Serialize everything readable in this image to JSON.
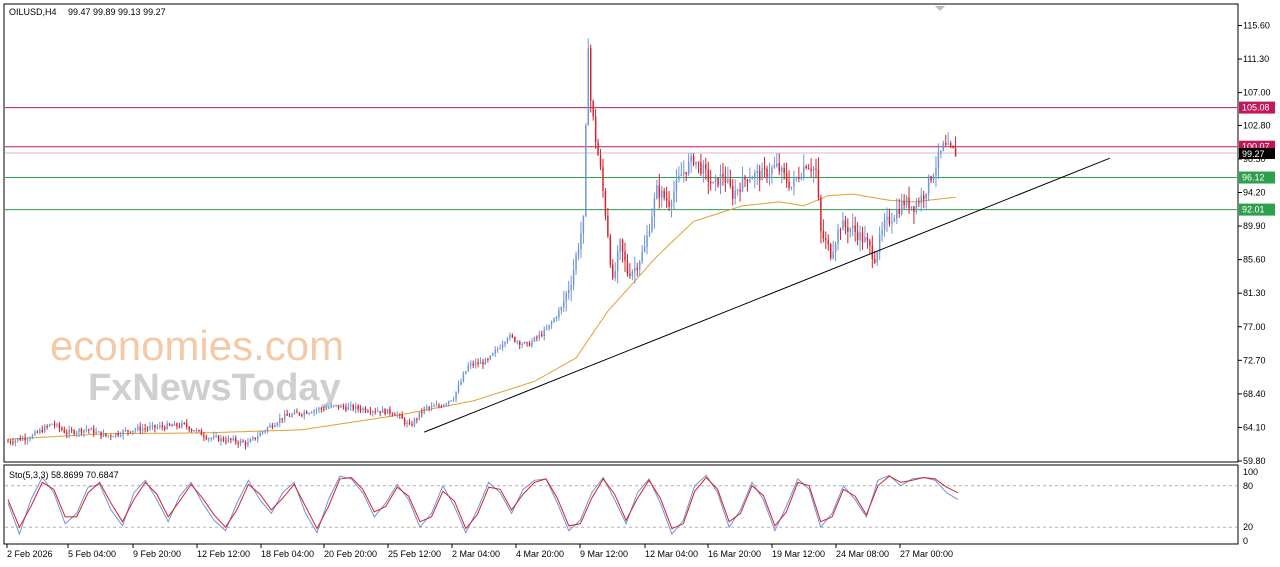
{
  "header": {
    "symbol": "OILUSD,H4",
    "ohlc": "99.47 99.89 99.13 99.27"
  },
  "watermark": {
    "line1": "economies.com",
    "line2": "FxNewsToday"
  },
  "chart_data": [
    {
      "type": "candlestick",
      "title": "OILUSD,H4",
      "ylim": [
        59.8,
        117.2
      ],
      "y_ticks": [
        115.6,
        111.3,
        107.0,
        102.8,
        98.5,
        94.2,
        89.9,
        85.6,
        81.3,
        77.0,
        72.7,
        68.4,
        64.1,
        59.8
      ],
      "x_ticks": [
        "2 Feb 2026",
        "5 Feb 04:00",
        "9 Feb 20:00",
        "12 Feb 12:00",
        "18 Feb 04:00",
        "20 Feb 20:00",
        "25 Feb 12:00",
        "2 Mar 04:00",
        "4 Mar 20:00",
        "9 Mar 12:00",
        "12 Mar 04:00",
        "16 Mar 20:00",
        "19 Mar 12:00",
        "24 Mar 08:00",
        "27 Mar 00:00"
      ],
      "up_color": "#6f95d6",
      "down_color": "#d6202e",
      "close_path": [
        [
          0,
          62.3
        ],
        [
          10,
          63.0
        ],
        [
          18,
          64.6
        ],
        [
          24,
          63.4
        ],
        [
          32,
          63.9
        ],
        [
          40,
          63.0
        ],
        [
          52,
          63.9
        ],
        [
          64,
          64.2
        ],
        [
          72,
          64.4
        ],
        [
          82,
          62.8
        ],
        [
          92,
          62.4
        ],
        [
          98,
          62.0
        ],
        [
          104,
          63.6
        ],
        [
          112,
          65.4
        ],
        [
          124,
          66.3
        ],
        [
          134,
          66.8
        ],
        [
          148,
          66.4
        ],
        [
          158,
          66.0
        ],
        [
          164,
          64.2
        ],
        [
          170,
          66.5
        ],
        [
          176,
          66.8
        ],
        [
          182,
          68.0
        ],
        [
          188,
          72.0
        ],
        [
          196,
          72.6
        ],
        [
          204,
          75.8
        ],
        [
          212,
          74.6
        ],
        [
          220,
          76.6
        ],
        [
          226,
          79.4
        ],
        [
          230,
          83.0
        ],
        [
          233,
          87.5
        ],
        [
          235,
          90.5
        ],
        [
          237,
          113.5
        ],
        [
          238,
          106.0
        ],
        [
          240,
          101.0
        ],
        [
          242,
          97.0
        ],
        [
          245,
          89.0
        ],
        [
          247,
          82.5
        ],
        [
          250,
          87.5
        ],
        [
          253,
          84.0
        ],
        [
          256,
          84.5
        ],
        [
          260,
          87.0
        ],
        [
          265,
          94.5
        ],
        [
          270,
          93.0
        ],
        [
          275,
          96.5
        ],
        [
          280,
          98.5
        ],
        [
          284,
          97.0
        ],
        [
          288,
          95.0
        ],
        [
          292,
          96.5
        ],
        [
          296,
          94.0
        ],
        [
          302,
          96.3
        ],
        [
          308,
          96.5
        ],
        [
          314,
          97.5
        ],
        [
          320,
          95.0
        ],
        [
          326,
          98.0
        ],
        [
          330,
          97.0
        ],
        [
          332,
          89.0
        ],
        [
          336,
          86.5
        ],
        [
          340,
          90.0
        ],
        [
          345,
          89.5
        ],
        [
          350,
          88.0
        ],
        [
          354,
          86.0
        ],
        [
          358,
          90.0
        ],
        [
          362,
          91.5
        ],
        [
          366,
          93.0
        ],
        [
          370,
          92.5
        ],
        [
          374,
          94.0
        ],
        [
          378,
          97.0
        ],
        [
          382,
          100.0
        ],
        [
          385,
          99.6
        ],
        [
          387,
          99.27
        ]
      ],
      "moving_average": [
        [
          0,
          62.6
        ],
        [
          40,
          63.3
        ],
        [
          80,
          63.4
        ],
        [
          120,
          63.8
        ],
        [
          160,
          65.7
        ],
        [
          190,
          67.5
        ],
        [
          215,
          70.0
        ],
        [
          232,
          73.0
        ],
        [
          245,
          79.0
        ],
        [
          265,
          86.0
        ],
        [
          280,
          90.5
        ],
        [
          300,
          92.5
        ],
        [
          315,
          93.0
        ],
        [
          325,
          92.5
        ],
        [
          335,
          93.8
        ],
        [
          345,
          94.0
        ],
        [
          360,
          93.2
        ],
        [
          370,
          93.0
        ],
        [
          387,
          93.6
        ]
      ],
      "trendline": [
        [
          170,
          63.5
        ],
        [
          450,
          98.6
        ]
      ],
      "levels": [
        {
          "value": 105.08,
          "label": "105.08",
          "color": "#c2185b"
        },
        {
          "value": 100.07,
          "label": "100.07",
          "color": "#c2185b"
        },
        {
          "value": 96.12,
          "label": "96.12",
          "color": "#2e9e4f"
        },
        {
          "value": 92.01,
          "label": "92.01",
          "color": "#2e9e4f"
        }
      ],
      "current_price": {
        "value": 99.27,
        "label": "99.27"
      }
    },
    {
      "type": "line",
      "title": "Sto(5,3,3) 58.8699 70.6847",
      "ylim": [
        0,
        100
      ],
      "y_ticks": [
        "100",
        "80",
        "20",
        "0"
      ],
      "levels": [
        80,
        20
      ],
      "series": [
        {
          "color": "#6f95d6",
          "values": [
            55,
            10,
            60,
            92,
            70,
            25,
            40,
            78,
            82,
            45,
            22,
            70,
            88,
            60,
            28,
            65,
            85,
            55,
            30,
            15,
            55,
            88,
            60,
            40,
            70,
            85,
            40,
            12,
            60,
            94,
            90,
            70,
            35,
            55,
            82,
            60,
            20,
            40,
            80,
            50,
            12,
            45,
            85,
            70,
            40,
            75,
            88,
            90,
            55,
            15,
            30,
            70,
            92,
            60,
            25,
            70,
            90,
            55,
            10,
            30,
            80,
            95,
            70,
            20,
            45,
            85,
            60,
            15,
            50,
            90,
            75,
            20,
            40,
            80,
            60,
            35,
            88,
            95,
            80,
            90,
            92,
            88,
            70,
            60
          ]
        },
        {
          "color": "#d6202e",
          "values": [
            60,
            20,
            50,
            85,
            75,
            35,
            35,
            70,
            85,
            55,
            28,
            60,
            85,
            68,
            35,
            58,
            82,
            62,
            38,
            20,
            45,
            82,
            68,
            45,
            62,
            82,
            50,
            18,
            50,
            90,
            92,
            75,
            42,
            50,
            78,
            65,
            28,
            35,
            72,
            58,
            18,
            38,
            78,
            75,
            45,
            68,
            85,
            90,
            62,
            22,
            25,
            62,
            90,
            68,
            30,
            62,
            88,
            62,
            18,
            25,
            72,
            92,
            75,
            28,
            40,
            80,
            66,
            22,
            42,
            85,
            80,
            28,
            35,
            75,
            65,
            38,
            80,
            94,
            85,
            88,
            92,
            90,
            78,
            70
          ]
        }
      ]
    }
  ]
}
